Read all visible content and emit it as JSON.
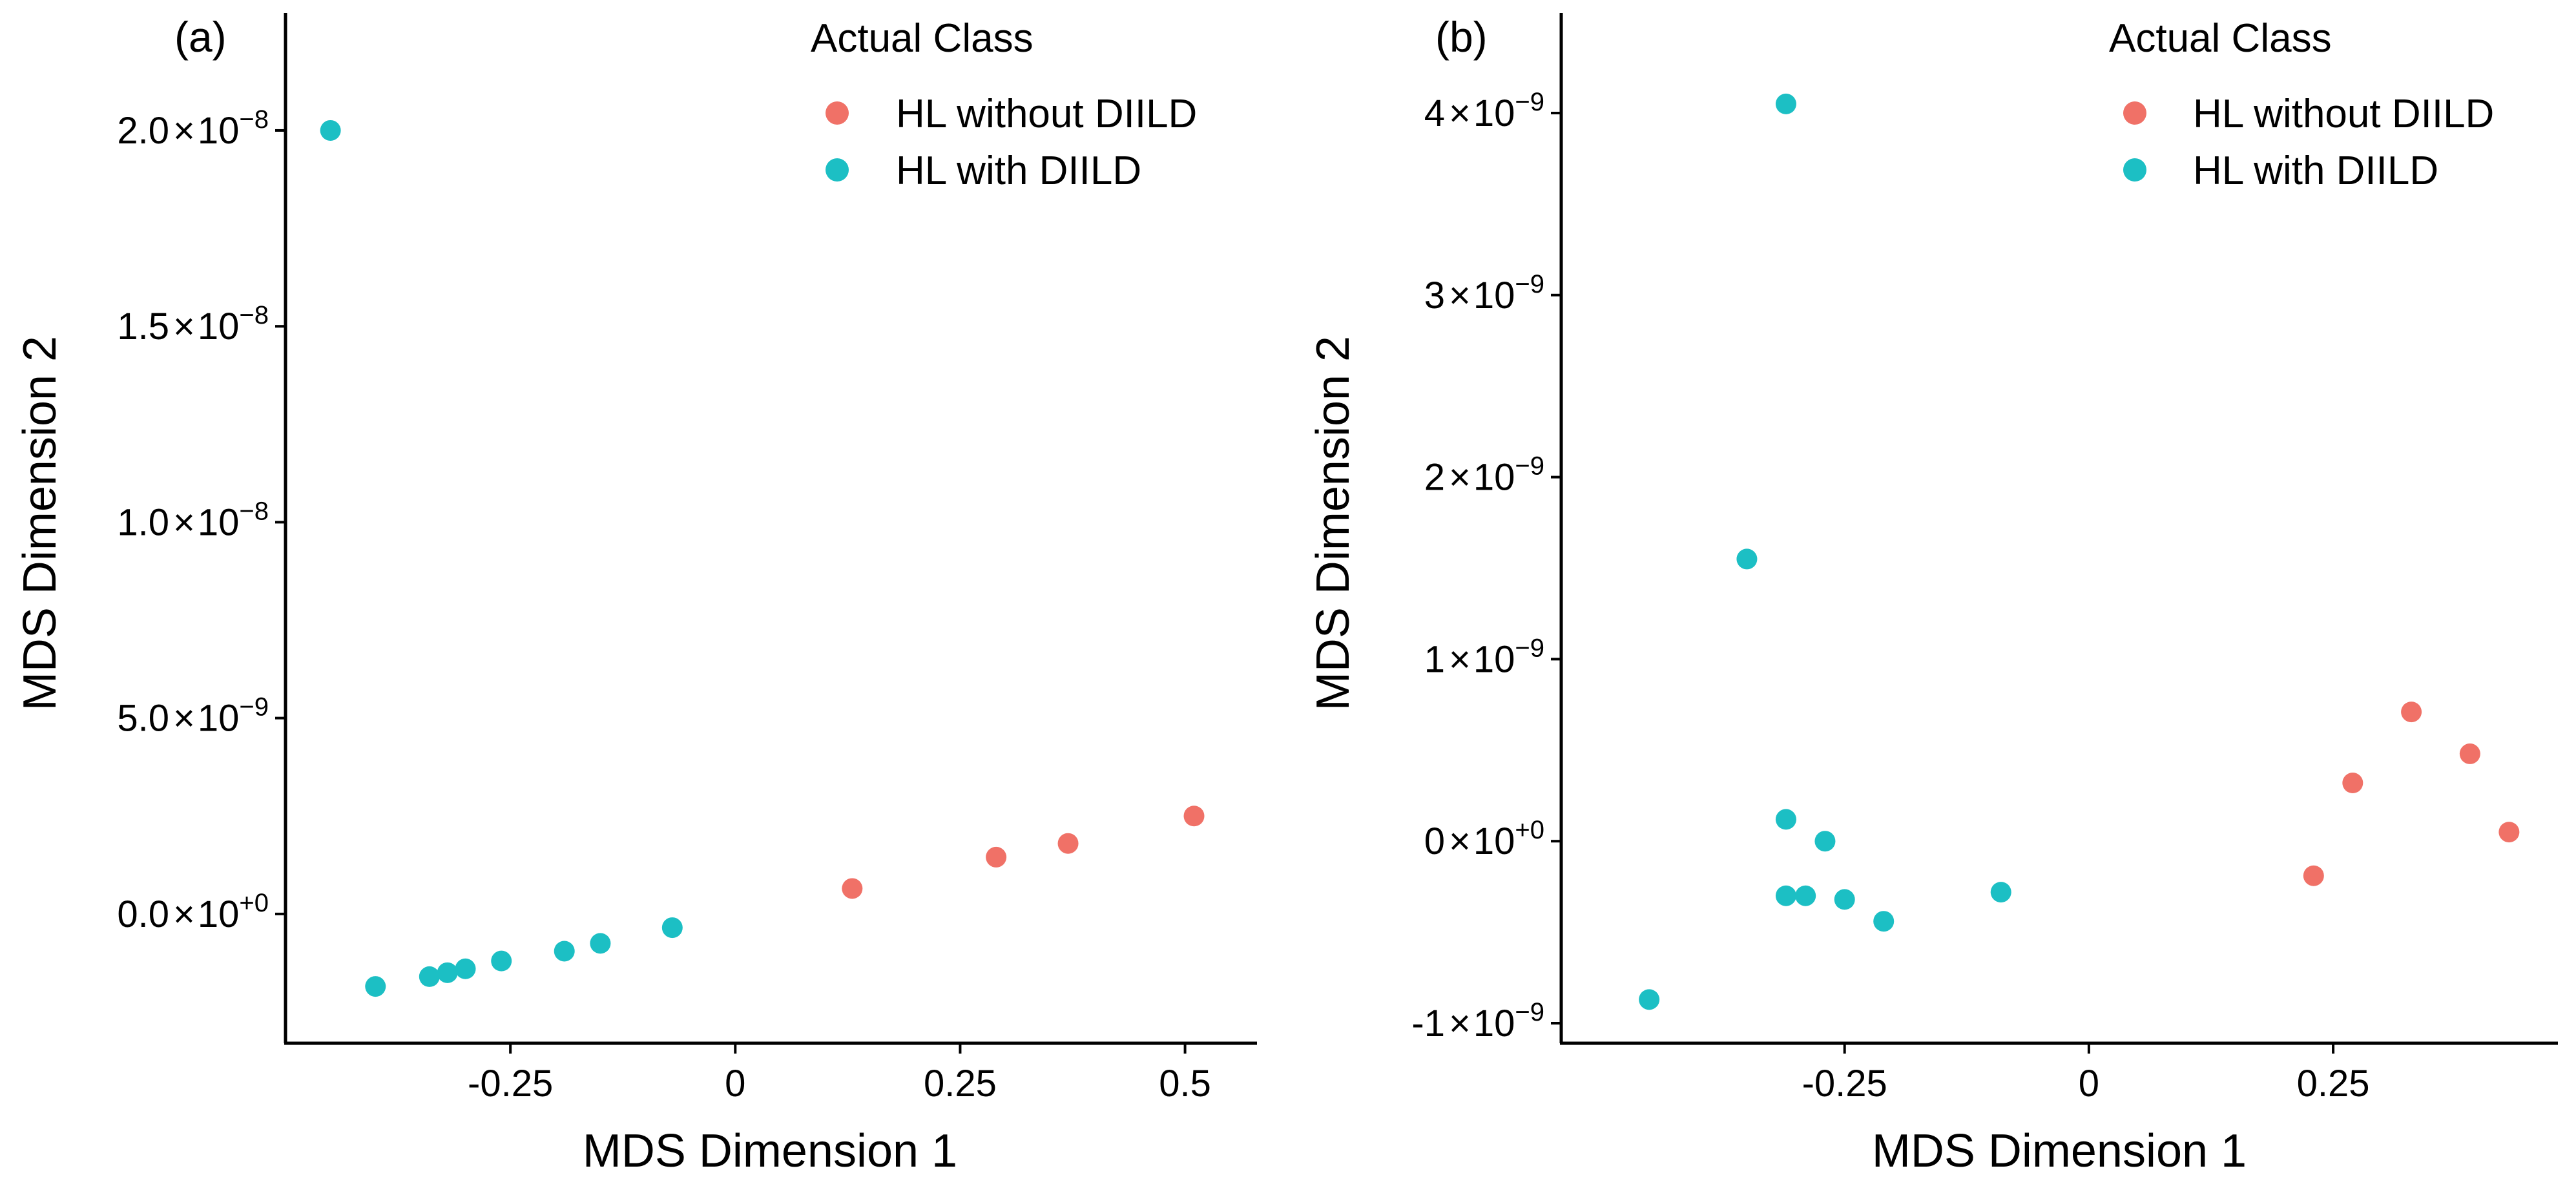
{
  "colors": {
    "without": "#F07167",
    "with": "#1CBFC4"
  },
  "legend": {
    "title": "Actual Class",
    "items": [
      {
        "label": "HL without DIILD",
        "color": "#F07167"
      },
      {
        "label": "HL with DIILD",
        "color": "#1CBFC4"
      }
    ]
  },
  "chart_data": [
    {
      "type": "scatter",
      "panel_label": "(a)",
      "xlabel": "MDS Dimension 1",
      "ylabel": "MDS Dimension 2",
      "xlim": [
        -0.5,
        0.58
      ],
      "ylim": [
        -3.3e-09,
        2.3e-08
      ],
      "xticks": [
        {
          "value": -0.25,
          "label": "-0.25"
        },
        {
          "value": 0,
          "label": "0"
        },
        {
          "value": 0.25,
          "label": "0.25"
        },
        {
          "value": 0.5,
          "label": "0.5"
        }
      ],
      "yticks": [
        {
          "value": 0,
          "mant": "0.0",
          "exp": "+0"
        },
        {
          "value": 5e-09,
          "mant": "5.0",
          "exp": "−9"
        },
        {
          "value": 1e-08,
          "mant": "1.0",
          "exp": "−8"
        },
        {
          "value": 1.5e-08,
          "mant": "1.5",
          "exp": "−8"
        },
        {
          "value": 2e-08,
          "mant": "2.0",
          "exp": "−8"
        }
      ],
      "series": [
        {
          "name": "HL without DIILD",
          "points": [
            [
              0.13,
              6.5e-10
            ],
            [
              0.29,
              1.45e-09
            ],
            [
              0.37,
              1.8e-09
            ],
            [
              0.51,
              2.5e-09
            ]
          ]
        },
        {
          "name": "HL with DIILD",
          "points": [
            [
              -0.45,
              2e-08
            ],
            [
              -0.4,
              -1.85e-09
            ],
            [
              -0.34,
              -1.6e-09
            ],
            [
              -0.32,
              -1.5e-09
            ],
            [
              -0.3,
              -1.4e-09
            ],
            [
              -0.26,
              -1.2e-09
            ],
            [
              -0.19,
              -9.5e-10
            ],
            [
              -0.15,
              -7.5e-10
            ],
            [
              -0.07,
              -3.5e-10
            ]
          ]
        }
      ]
    },
    {
      "type": "scatter",
      "panel_label": "(b)",
      "xlabel": "MDS Dimension 1",
      "ylabel": "MDS Dimension 2",
      "xlim": [
        -0.54,
        0.48
      ],
      "ylim": [
        -1.11e-09,
        4.55e-09
      ],
      "xticks": [
        {
          "value": -0.25,
          "label": "-0.25"
        },
        {
          "value": 0,
          "label": "0"
        },
        {
          "value": 0.25,
          "label": "0.25"
        }
      ],
      "yticks": [
        {
          "value": -1e-09,
          "mant": "-1",
          "exp": "−9"
        },
        {
          "value": 0,
          "mant": "0",
          "exp": "+0"
        },
        {
          "value": 1e-09,
          "mant": "1",
          "exp": "−9"
        },
        {
          "value": 2e-09,
          "mant": "2",
          "exp": "−9"
        },
        {
          "value": 3e-09,
          "mant": "3",
          "exp": "−9"
        },
        {
          "value": 4e-09,
          "mant": "4",
          "exp": "−9"
        }
      ],
      "series": [
        {
          "name": "HL without DIILD",
          "points": [
            [
              0.23,
              -1.9e-10
            ],
            [
              0.27,
              3.2e-10
            ],
            [
              0.33,
              7.1e-10
            ],
            [
              0.39,
              4.8e-10
            ],
            [
              0.43,
              5e-11
            ]
          ]
        },
        {
          "name": "HL with DIILD",
          "points": [
            [
              -0.31,
              4.05e-09
            ],
            [
              -0.35,
              1.55e-09
            ],
            [
              -0.31,
              1.2e-10
            ],
            [
              -0.27,
              0.0
            ],
            [
              -0.31,
              -3e-10
            ],
            [
              -0.29,
              -3e-10
            ],
            [
              -0.25,
              -3.2e-10
            ],
            [
              -0.21,
              -4.4e-10
            ],
            [
              -0.09,
              -2.8e-10
            ],
            [
              -0.45,
              -8.7e-10
            ]
          ]
        }
      ]
    }
  ]
}
